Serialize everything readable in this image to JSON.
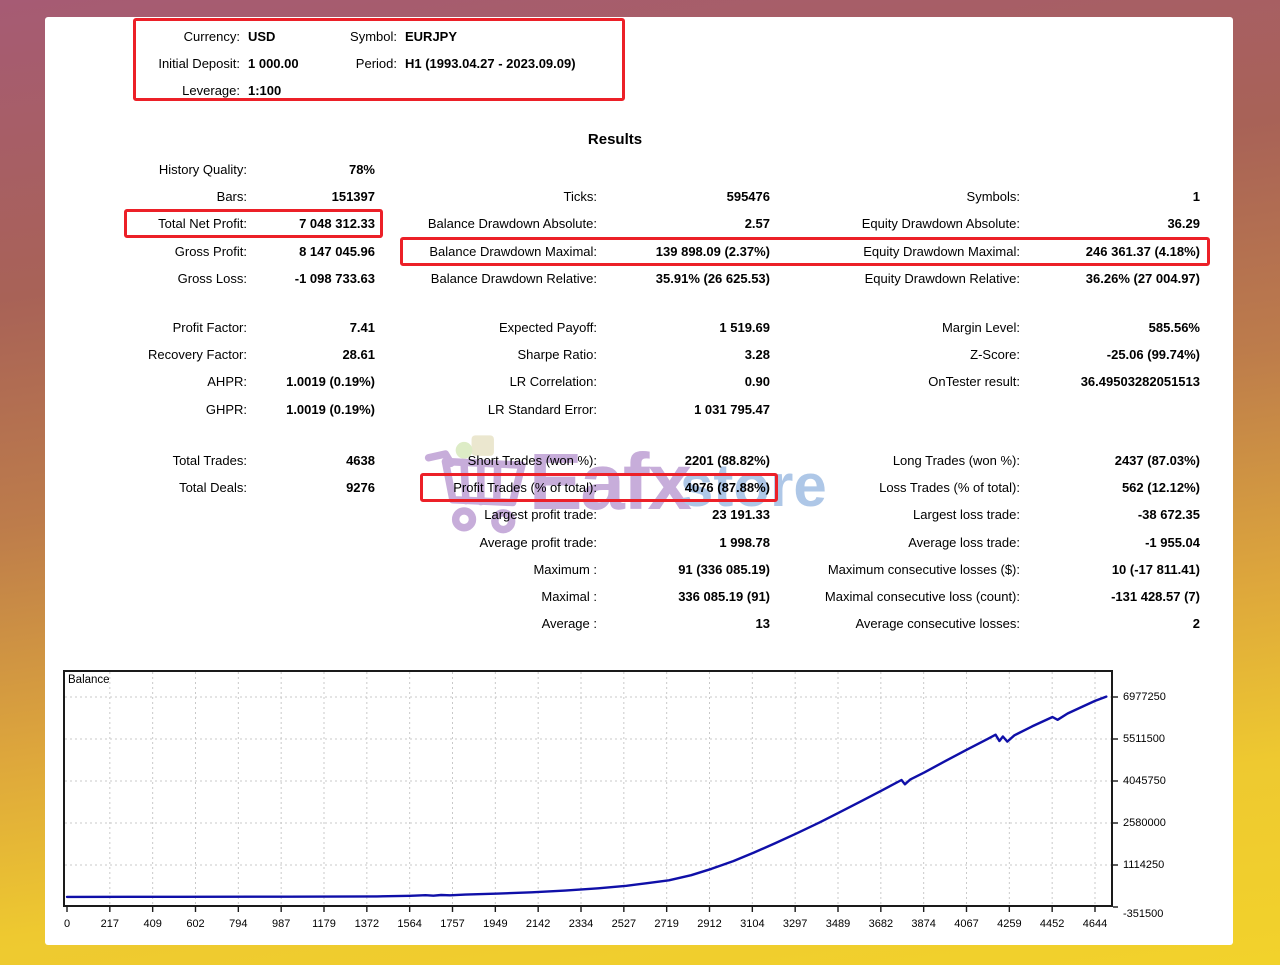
{
  "header": {
    "currency_label": "Currency:",
    "currency": "USD",
    "symbol_label": "Symbol:",
    "symbol": "EURJPY",
    "deposit_label": "Initial Deposit:",
    "deposit": "1 000.00",
    "period_label": "Period:",
    "period": "H1 (1993.04.27 - 2023.09.09)",
    "leverage_label": "Leverage:",
    "leverage": "1:100"
  },
  "results": {
    "title": "Results",
    "blocks": [
      {
        "rows": [
          {
            "c1": [
              "History Quality:",
              "78%"
            ],
            "c2": null,
            "c3": null
          },
          {
            "c1": [
              "Bars:",
              "151397"
            ],
            "c2": [
              "Ticks:",
              "595476"
            ],
            "c3": [
              "Symbols:",
              "1"
            ]
          },
          {
            "c1": [
              "Total Net Profit:",
              "7 048 312.33"
            ],
            "c2": [
              "Balance Drawdown Absolute:",
              "2.57"
            ],
            "c3": [
              "Equity Drawdown Absolute:",
              "36.29"
            ]
          },
          {
            "c1": [
              "Gross Profit:",
              "8 147 045.96"
            ],
            "c2": [
              "Balance Drawdown Maximal:",
              "139 898.09 (2.37%)"
            ],
            "c3": [
              "Equity Drawdown Maximal:",
              "246 361.37 (4.18%)"
            ]
          },
          {
            "c1": [
              "Gross Loss:",
              "-1 098 733.63"
            ],
            "c2": [
              "Balance Drawdown Relative:",
              "35.91% (26 625.53)"
            ],
            "c3": [
              "Equity Drawdown Relative:",
              "36.26% (27 004.97)"
            ]
          }
        ]
      },
      {
        "rows": [
          {
            "c1": [
              "Profit Factor:",
              "7.41"
            ],
            "c2": [
              "Expected Payoff:",
              "1 519.69"
            ],
            "c3": [
              "Margin Level:",
              "585.56%"
            ]
          },
          {
            "c1": [
              "Recovery Factor:",
              "28.61"
            ],
            "c2": [
              "Sharpe Ratio:",
              "3.28"
            ],
            "c3": [
              "Z-Score:",
              "-25.06 (99.74%)"
            ]
          },
          {
            "c1": [
              "AHPR:",
              "1.0019 (0.19%)"
            ],
            "c2": [
              "LR Correlation:",
              "0.90"
            ],
            "c3": [
              "OnTester result:",
              "36.49503282051513"
            ]
          },
          {
            "c1": [
              "GHPR:",
              "1.0019 (0.19%)"
            ],
            "c2": [
              "LR Standard Error:",
              "1 031 795.47"
            ],
            "c3": null
          }
        ]
      },
      {
        "rows": [
          {
            "c1": [
              "Total Trades:",
              "4638"
            ],
            "c2": [
              "Short Trades (won %):",
              "2201 (88.82%)"
            ],
            "c3": [
              "Long Trades (won %):",
              "2437 (87.03%)"
            ]
          },
          {
            "c1": [
              "Total Deals:",
              "9276"
            ],
            "c2": [
              "Profit Trades (% of total):",
              "4076 (87.88%)"
            ],
            "c3": [
              "Loss Trades (% of total):",
              "562 (12.12%)"
            ]
          },
          {
            "c1": null,
            "c2": [
              "Largest profit trade:",
              "23 191.33"
            ],
            "c3": [
              "Largest loss trade:",
              "-38 672.35"
            ]
          },
          {
            "c1": null,
            "c2": [
              "Average profit trade:",
              "1 998.78"
            ],
            "c3": [
              "Average loss trade:",
              "-1 955.04"
            ]
          },
          {
            "c1": null,
            "c2": [
              "Maximum :",
              "91 (336 085.19)"
            ],
            "c3": [
              "Maximum consecutive losses ($):",
              "10 (-17 811.41)"
            ]
          },
          {
            "c1": null,
            "c2": [
              "Maximal :",
              "336 085.19 (91)"
            ],
            "c3": [
              "Maximal consecutive loss (count):",
              "-131 428.57 (7)"
            ]
          },
          {
            "c1": null,
            "c2": [
              "Average :",
              "13"
            ],
            "c3": [
              "Average consecutive losses:",
              "2"
            ]
          }
        ]
      }
    ]
  },
  "watermark": {
    "text1": "Eafx",
    "text2": "store"
  },
  "colors": {
    "highlight_red": "#ec2028",
    "line_navy": "#0f0fa8",
    "grid_gray": "#c9c9c9",
    "watermark_purple": "#8f5bb5",
    "watermark_blue": "#5d8fd0"
  },
  "chart_data": {
    "type": "line",
    "title": "Balance",
    "legend_position": "top-left inside plot",
    "grid": true,
    "xlim": [
      0,
      4690
    ],
    "ylim": [
      -351500,
      7919563
    ],
    "x_ticks": [
      0,
      217,
      409,
      602,
      794,
      987,
      1179,
      1372,
      1564,
      1757,
      1949,
      2142,
      2334,
      2527,
      2719,
      2912,
      3104,
      3297,
      3489,
      3682,
      3874,
      4067,
      4259,
      4452,
      4644
    ],
    "y_ticks": [
      6977250,
      5511500,
      4045750,
      2580000,
      1114250,
      -351500
    ],
    "series": [
      {
        "name": "Balance",
        "color": "#0f0fa8",
        "points": [
          [
            0,
            1000
          ],
          [
            500,
            3000
          ],
          [
            1000,
            8000
          ],
          [
            1400,
            20000
          ],
          [
            1550,
            40000
          ],
          [
            1620,
            60000
          ],
          [
            1655,
            42000
          ],
          [
            1690,
            68000
          ],
          [
            1730,
            58000
          ],
          [
            1800,
            82000
          ],
          [
            1950,
            115000
          ],
          [
            2100,
            160000
          ],
          [
            2250,
            220000
          ],
          [
            2400,
            300000
          ],
          [
            2527,
            390000
          ],
          [
            2620,
            480000
          ],
          [
            2719,
            580000
          ],
          [
            2820,
            760000
          ],
          [
            2912,
            980000
          ],
          [
            3010,
            1250000
          ],
          [
            3104,
            1550000
          ],
          [
            3200,
            1880000
          ],
          [
            3297,
            2220000
          ],
          [
            3400,
            2600000
          ],
          [
            3489,
            2950000
          ],
          [
            3590,
            3350000
          ],
          [
            3682,
            3720000
          ],
          [
            3770,
            4080000
          ],
          [
            3785,
            3930000
          ],
          [
            3810,
            4100000
          ],
          [
            3874,
            4350000
          ],
          [
            3970,
            4750000
          ],
          [
            4067,
            5150000
          ],
          [
            4160,
            5520000
          ],
          [
            4195,
            5660000
          ],
          [
            4212,
            5440000
          ],
          [
            4228,
            5600000
          ],
          [
            4248,
            5420000
          ],
          [
            4280,
            5640000
          ],
          [
            4360,
            5950000
          ],
          [
            4452,
            6280000
          ],
          [
            4475,
            6180000
          ],
          [
            4520,
            6400000
          ],
          [
            4590,
            6650000
          ],
          [
            4644,
            6840000
          ],
          [
            4695,
            6990000
          ]
        ]
      }
    ]
  }
}
